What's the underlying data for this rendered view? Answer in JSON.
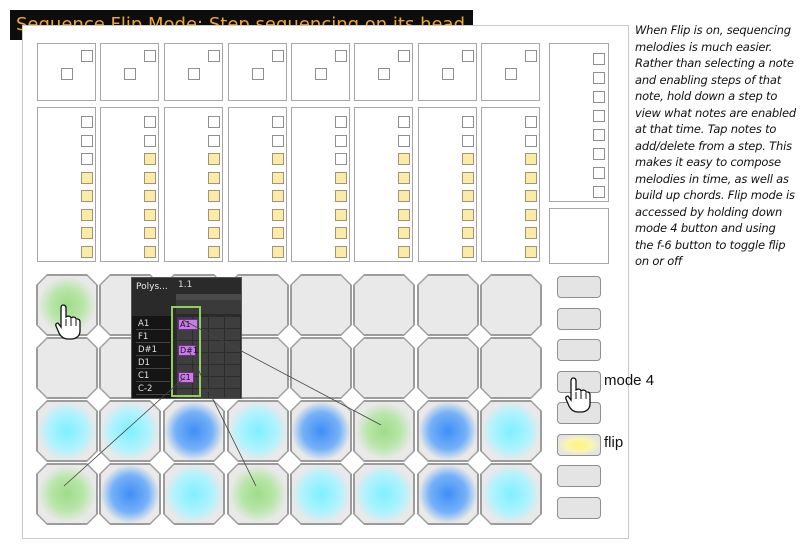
{
  "title": "Sequence Flip Mode: Step sequencing on its head.",
  "description": "When Flip is on, sequencing melodies is much easier. Rather than selecting a note and enabling steps of that note, hold down a step to view what notes are enabled at that time. Tap notes to add/delete from a step. This makes it easy to compose melodies in time, as well as build up chords. Flip mode is accessed by holding down mode 4 button and using the f-6 button to toggle flip on or off",
  "labels": {
    "mode4": "mode 4",
    "flip": "flip"
  },
  "clip": {
    "header": "Polys...",
    "position": "1.1",
    "keys": [
      "A1",
      "F1",
      "D#1",
      "D1",
      "C1",
      "C-2"
    ],
    "notes": [
      "A1",
      "D#1",
      "C1"
    ]
  },
  "colors": {
    "title_bg": "#0d0d0d",
    "title_text": "#f3a531",
    "active_step": "#fbeba7",
    "note": "#c67ee3",
    "highlight": "#8fcf5f",
    "pad_green": "#9fdb8a",
    "pad_cyan": "#7fefff",
    "pad_blue": "#3f8ff5",
    "flip_yellow": "#fff27a"
  },
  "pad_rows": [
    [
      "green",
      "none",
      "none",
      "none",
      "none",
      "none",
      "none",
      "none"
    ],
    [
      "none",
      "none",
      "none",
      "none",
      "none",
      "none",
      "none",
      "none"
    ],
    [
      "cyan",
      "cyan",
      "blue",
      "cyan",
      "blue",
      "green",
      "blue",
      "cyan"
    ],
    [
      "green",
      "blue",
      "cyan",
      "green",
      "cyan",
      "cyan",
      "blue",
      "cyan"
    ]
  ],
  "step_columns": [
    [
      0,
      0,
      0,
      1,
      1,
      1,
      1,
      1
    ],
    [
      0,
      0,
      1,
      1,
      1,
      1,
      1,
      1
    ],
    [
      0,
      0,
      1,
      1,
      1,
      1,
      1,
      1
    ],
    [
      0,
      0,
      1,
      1,
      1,
      1,
      1,
      1
    ],
    [
      0,
      0,
      0,
      1,
      1,
      1,
      1,
      1
    ],
    [
      0,
      0,
      1,
      1,
      1,
      1,
      1,
      1
    ],
    [
      0,
      0,
      1,
      1,
      1,
      1,
      1,
      1
    ],
    [
      0,
      0,
      1,
      1,
      1,
      1,
      1,
      1
    ]
  ],
  "right_panel_squares": 8,
  "side_buttons": [
    "off",
    "off",
    "off",
    "mode4",
    "off",
    "flip",
    "off",
    "off"
  ]
}
